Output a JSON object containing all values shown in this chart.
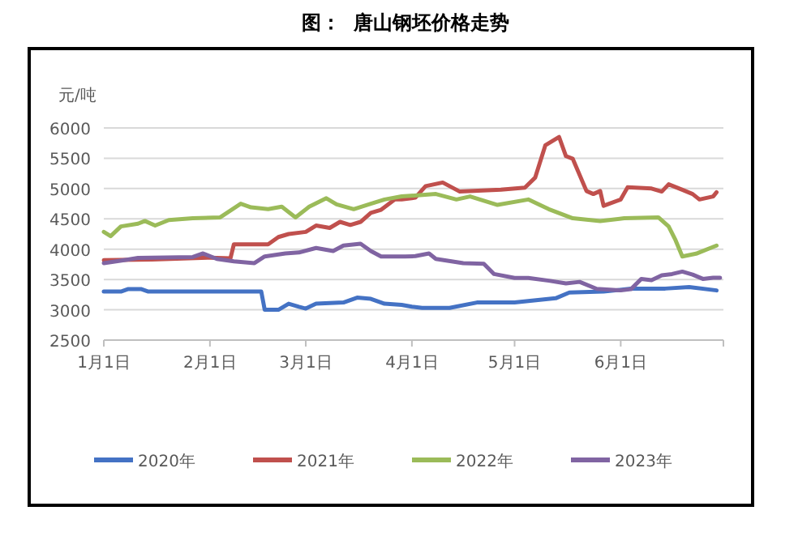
{
  "chart_data": {
    "type": "line",
    "title": "图：  唐山钢坯价格走势",
    "ylabel": "元/吨",
    "xlim": [
      "--01-01",
      "--07-01"
    ],
    "xticks": [
      {
        "value": "--01-01",
        "label": "1月1日"
      },
      {
        "value": "--02-01",
        "label": "2月1日"
      },
      {
        "value": "--03-01",
        "label": "3月1日"
      },
      {
        "value": "--04-01",
        "label": "4月1日"
      },
      {
        "value": "--05-01",
        "label": "5月1日"
      },
      {
        "value": "--06-01",
        "label": "6月1日"
      },
      {
        "value": "--07-01",
        "label": null
      }
    ],
    "ylim": [
      2500,
      6000
    ],
    "yticks": [
      2500,
      3000,
      3500,
      4000,
      4500,
      5000,
      5500,
      6000
    ],
    "grid": "y",
    "legend": "bottom",
    "marker": "none",
    "line_style": "solid",
    "series": [
      {
        "name": "2020年",
        "color": "#4472c4",
        "x": [
          "--01-01",
          "--01-06",
          "--01-08",
          "--01-12",
          "--01-14",
          "--02-16",
          "--02-17",
          "--02-21",
          "--02-24",
          "--02-27",
          "--03-01",
          "--03-04",
          "--03-12",
          "--03-16",
          "--03-20",
          "--03-24",
          "--03-29",
          "--04-01",
          "--04-04",
          "--04-12",
          "--04-20",
          "--05-01",
          "--05-13",
          "--05-17",
          "--05-27",
          "--06-04",
          "--06-14",
          "--06-21",
          "--06-29"
        ],
        "values": [
          3300,
          3300,
          3340,
          3340,
          3300,
          3300,
          3000,
          3000,
          3100,
          3050,
          3020,
          3100,
          3120,
          3200,
          3180,
          3100,
          3080,
          3050,
          3030,
          3030,
          3120,
          3120,
          3190,
          3285,
          3300,
          3350,
          3350,
          3375,
          3320
        ]
      },
      {
        "name": "2021年",
        "color": "#c0504d",
        "x": [
          "--01-01",
          "--01-15",
          "--02-01",
          "--02-07",
          "--02-08",
          "--02-18",
          "--02-21",
          "--02-24",
          "--03-01",
          "--03-04",
          "--03-08",
          "--03-11",
          "--03-14",
          "--03-17",
          "--03-20",
          "--03-23",
          "--03-27",
          "--03-29",
          "--04-02",
          "--04-05",
          "--04-10",
          "--04-15",
          "--04-27",
          "--05-04",
          "--05-07",
          "--05-10",
          "--05-14",
          "--05-16",
          "--05-18",
          "--05-22",
          "--05-24",
          "--05-26",
          "--05-27",
          "--06-01",
          "--06-03",
          "--06-10",
          "--06-13",
          "--06-15",
          "--06-19",
          "--06-22",
          "--06-24",
          "--06-28",
          "--06-29"
        ],
        "values": [
          3820,
          3830,
          3860,
          3850,
          4080,
          4080,
          4200,
          4250,
          4285,
          4390,
          4350,
          4450,
          4400,
          4450,
          4600,
          4650,
          4820,
          4820,
          4850,
          5040,
          5100,
          4950,
          4980,
          5015,
          5180,
          5715,
          5850,
          5535,
          5490,
          4960,
          4910,
          4960,
          4715,
          4820,
          5020,
          5000,
          4950,
          5070,
          4980,
          4910,
          4820,
          4870,
          4940
        ]
      },
      {
        "name": "2022年",
        "color": "#9bbb59",
        "x": [
          "--01-01",
          "--01-03",
          "--01-06",
          "--01-11",
          "--01-13",
          "--01-16",
          "--01-20",
          "--01-27",
          "--02-04",
          "--02-10",
          "--02-13",
          "--02-18",
          "--02-22",
          "--02-26",
          "--03-02",
          "--03-07",
          "--03-10",
          "--03-15",
          "--03-20",
          "--03-24",
          "--03-29",
          "--04-08",
          "--04-14",
          "--04-18",
          "--04-26",
          "--05-05",
          "--05-11",
          "--05-18",
          "--05-26",
          "--06-02",
          "--06-12",
          "--06-15",
          "--06-17",
          "--06-19",
          "--06-23",
          "--06-29"
        ],
        "values": [
          4285,
          4215,
          4375,
          4420,
          4465,
          4390,
          4480,
          4510,
          4525,
          4750,
          4690,
          4660,
          4700,
          4525,
          4700,
          4840,
          4740,
          4660,
          4750,
          4820,
          4870,
          4910,
          4820,
          4870,
          4730,
          4820,
          4660,
          4510,
          4465,
          4510,
          4525,
          4375,
          4150,
          3880,
          3925,
          4060
        ]
      },
      {
        "name": "2023年",
        "color": "#8064a2",
        "x": [
          "--01-01",
          "--01-07",
          "--01-11",
          "--01-27",
          "--01-30",
          "--02-03",
          "--02-08",
          "--02-14",
          "--02-17",
          "--02-23",
          "--02-27",
          "--03-04",
          "--03-09",
          "--03-12",
          "--03-17",
          "--03-20",
          "--03-23",
          "--03-30",
          "--04-02",
          "--04-06",
          "--04-08",
          "--04-16",
          "--04-22",
          "--04-25",
          "--05-01",
          "--05-05",
          "--05-11",
          "--05-16",
          "--05-20",
          "--05-25",
          "--06-01",
          "--06-04",
          "--06-07",
          "--06-10",
          "--06-13",
          "--06-16",
          "--06-19",
          "--06-22",
          "--06-25",
          "--06-28",
          "--06-30"
        ],
        "values": [
          3770,
          3820,
          3855,
          3870,
          3930,
          3840,
          3800,
          3770,
          3880,
          3930,
          3945,
          4020,
          3970,
          4060,
          4090,
          3970,
          3880,
          3880,
          3885,
          3930,
          3840,
          3770,
          3760,
          3590,
          3525,
          3525,
          3480,
          3435,
          3460,
          3345,
          3320,
          3340,
          3510,
          3490,
          3570,
          3590,
          3630,
          3580,
          3510,
          3530,
          3530
        ]
      }
    ]
  }
}
